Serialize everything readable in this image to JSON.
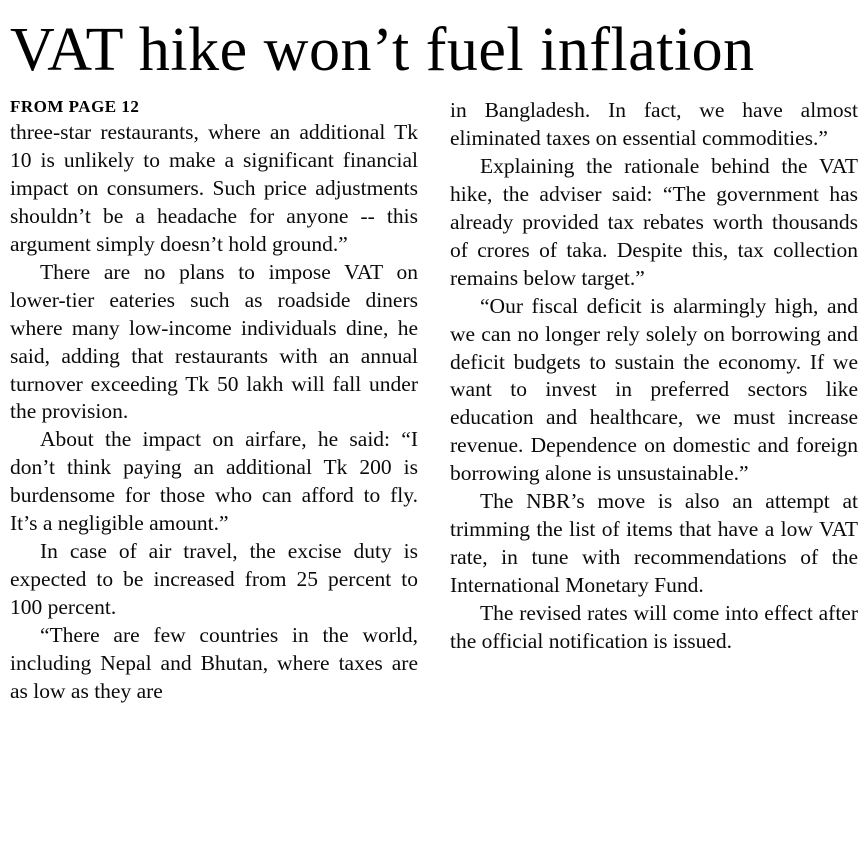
{
  "article": {
    "headline": "VAT hike won’t fuel inflation",
    "kicker": "FROM PAGE 12",
    "columns": {
      "left": [
        "three-star restaurants, where an additional Tk 10 is unlikely to make a significant financial impact on consumers. Such price adjustments shouldn’t be a headache for anyone -- this argument simply doesn’t hold ground.”",
        "There are no plans to impose VAT on lower-tier eateries such as roadside diners where many low-income individuals dine, he said, adding that restaurants with an annual turnover exceeding Tk 50 lakh will fall under the provision.",
        "About the impact on airfare, he said: “I don’t think paying an additional Tk 200 is burdensome for those who can afford to fly. It’s a negligible amount.”",
        "In case of air travel, the excise duty is expected to be increased from 25 percent to 100 percent.",
        "“There are few countries in the world, including Nepal and Bhutan, where taxes are as low as they are"
      ],
      "right": [
        "in Bangladesh. In fact, we have almost eliminated taxes on essential commodities.”",
        "Explaining the rationale behind the VAT hike, the adviser said: “The government has already provided tax rebates worth thousands of crores of taka. Despite this, tax collection remains below target.”",
        "“Our fiscal deficit is alarmingly high, and we can no longer rely solely on borrowing and deficit budgets to sustain the economy. If we want to invest in preferred sectors like education and healthcare, we must increase revenue. Dependence on domestic and foreign borrowing alone is unsustainable.”",
        "The NBR’s move is also an attempt at trimming the list of items that have a low VAT rate, in tune with recommendations of the International Monetary Fund.",
        "The revised rates will come into effect after the official notification is issued."
      ]
    }
  }
}
